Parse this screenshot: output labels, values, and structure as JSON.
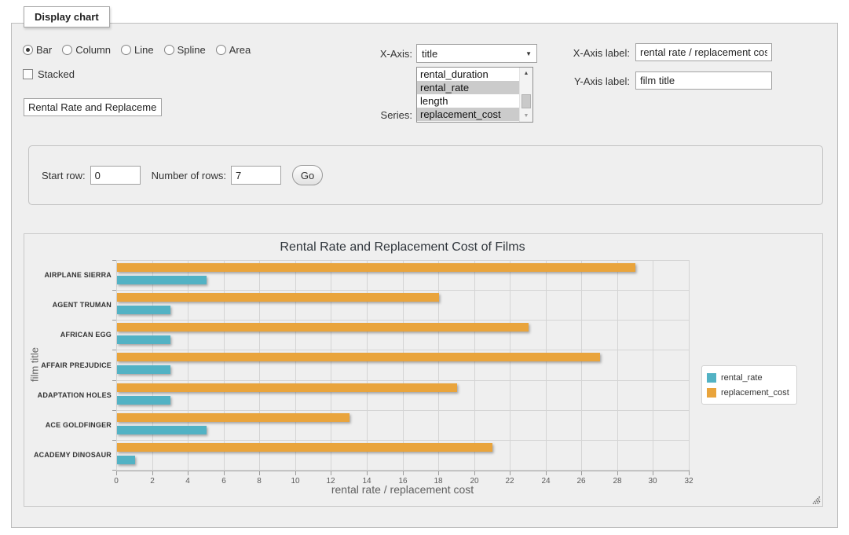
{
  "panel": {
    "title": "Display chart"
  },
  "controls": {
    "chart_types": [
      {
        "label": "Bar",
        "selected": true
      },
      {
        "label": "Column",
        "selected": false
      },
      {
        "label": "Line",
        "selected": false
      },
      {
        "label": "Spline",
        "selected": false
      },
      {
        "label": "Area",
        "selected": false
      }
    ],
    "stacked": {
      "label": "Stacked",
      "checked": false
    },
    "chart_title_input": {
      "value": "Rental Rate and Replacement Cost of Films"
    },
    "x_axis": {
      "label": "X-Axis:",
      "selected_option": "title"
    },
    "series_select": {
      "label": "Series:",
      "options": [
        {
          "label": "rental_duration",
          "selected": false
        },
        {
          "label": "rental_rate",
          "selected": true
        },
        {
          "label": "length",
          "selected": false
        },
        {
          "label": "replacement_cost",
          "selected": true
        }
      ]
    },
    "x_axis_label": {
      "label": "X-Axis label:",
      "value": "rental rate / replacement cost"
    },
    "y_axis_label": {
      "label": "Y-Axis label:",
      "value": "film title"
    }
  },
  "rows_form": {
    "start_row_label": "Start row:",
    "start_row_value": "0",
    "num_rows_label": "Number of rows:",
    "num_rows_value": "7",
    "go_label": "Go"
  },
  "chart_data": {
    "type": "bar",
    "title": "Rental Rate and Replacement Cost of Films",
    "xlabel": "rental rate / replacement cost",
    "ylabel": "film title",
    "categories": [
      "AIRPLANE SIERRA",
      "AGENT TRUMAN",
      "AFRICAN EGG",
      "AFFAIR PREJUDICE",
      "ADAPTATION HOLES",
      "ACE GOLDFINGER",
      "ACADEMY DINOSAUR"
    ],
    "series": [
      {
        "name": "rental_rate",
        "color": "#52B2C4",
        "values": [
          4.99,
          2.99,
          2.99,
          2.99,
          2.99,
          4.99,
          0.99
        ]
      },
      {
        "name": "replacement_cost",
        "color": "#E9A43C",
        "values": [
          28.99,
          17.99,
          22.99,
          26.99,
          18.99,
          12.99,
          20.99
        ]
      }
    ],
    "xlim": [
      0,
      32
    ],
    "xticks": [
      0,
      2,
      4,
      6,
      8,
      10,
      12,
      14,
      16,
      18,
      20,
      22,
      24,
      26,
      28,
      30,
      32
    ],
    "grid": true,
    "legend_position": "right"
  }
}
